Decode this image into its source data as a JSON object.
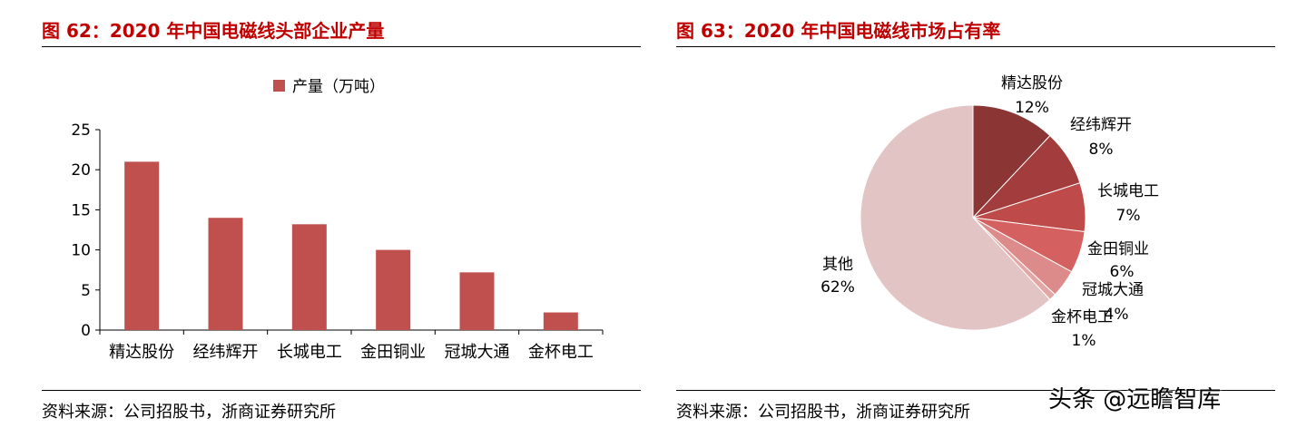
{
  "figures": [
    {
      "title": "图 62：2020 年中国电磁线头部企业产量",
      "source": "资料来源：公司招股书，浙商证券研究所"
    },
    {
      "title": "图 63：2020 年中国电磁线市场占有率",
      "source": "资料来源：公司招股书，浙商证券研究所"
    }
  ],
  "watermark": "头条 @远瞻智库",
  "colors": {
    "title_red": "#c00000",
    "bar": "#c0504d",
    "pie": [
      "#8b3535",
      "#a33c3c",
      "#bf4a4a",
      "#d46060",
      "#dc8a8a",
      "#e4a5a5",
      "#e3c4c5"
    ]
  },
  "chart_data": [
    {
      "type": "bar",
      "categories": [
        "精达股份",
        "经纬辉开",
        "长城电工",
        "金田铜业",
        "冠城大通",
        "金杯电工"
      ],
      "series": [
        {
          "name": "产量（万吨）",
          "values": [
            21,
            14,
            13.2,
            10,
            7.2,
            2.2
          ]
        }
      ],
      "ylim": [
        0,
        25
      ],
      "yticks": [
        "0",
        "5",
        "10",
        "15",
        "20",
        "25"
      ],
      "legend_position": "top-center",
      "grid": false
    },
    {
      "type": "pie",
      "slices": [
        {
          "label": "精达股份",
          "pct_label": "12%",
          "value": 12
        },
        {
          "label": "经纬辉开",
          "pct_label": "8%",
          "value": 8
        },
        {
          "label": "长城电工",
          "pct_label": "7%",
          "value": 7
        },
        {
          "label": "金田铜业",
          "pct_label": "6%",
          "value": 6
        },
        {
          "label": "冠城大通",
          "pct_label": "4%",
          "value": 4
        },
        {
          "label": "金杯电工",
          "pct_label": "1%",
          "value": 1
        },
        {
          "label": "其他",
          "pct_label": "62%",
          "value": 62
        }
      ],
      "start_angle": "12 o'clock",
      "direction": "clockwise"
    }
  ]
}
